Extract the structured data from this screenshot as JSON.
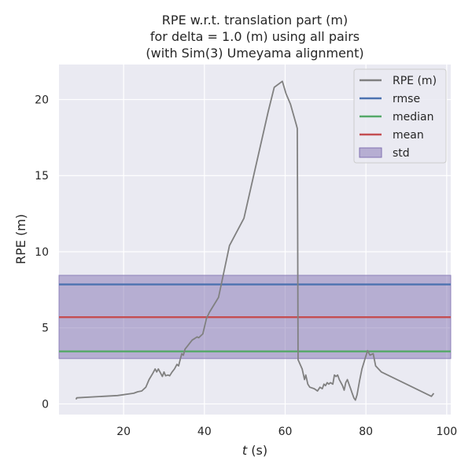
{
  "chart_data": {
    "type": "line",
    "title": [
      "RPE w.r.t. translation part (m)",
      "for delta = 1.0 (m) using all pairs",
      "(with Sim(3) Umeyama alignment)"
    ],
    "xlabel_italic": "t",
    "xlabel_rest": " (s)",
    "ylabel": "RPE (m)",
    "xlim": [
      4,
      101
    ],
    "ylim": [
      -0.7,
      22.3
    ],
    "xticks": [
      20,
      40,
      60,
      80,
      100
    ],
    "yticks": [
      0,
      5,
      10,
      15,
      20
    ],
    "grid": true,
    "legend_position": "top-right",
    "background": "#eaeaf2",
    "series": [
      {
        "name": "RPE (m)",
        "color": "#808080",
        "points": [
          [
            8.2,
            0.3
          ],
          [
            8.4,
            0.4
          ],
          [
            18.5,
            0.55
          ],
          [
            22.5,
            0.7
          ],
          [
            23.5,
            0.8
          ],
          [
            24.5,
            0.85
          ],
          [
            25.5,
            1.1
          ],
          [
            26.3,
            1.6
          ],
          [
            27.2,
            2.0
          ],
          [
            27.8,
            2.3
          ],
          [
            28.2,
            2.1
          ],
          [
            28.6,
            2.3
          ],
          [
            29.2,
            2.0
          ],
          [
            29.6,
            1.8
          ],
          [
            30.0,
            2.1
          ],
          [
            30.4,
            1.85
          ],
          [
            31.0,
            1.9
          ],
          [
            31.4,
            1.85
          ],
          [
            32.0,
            2.1
          ],
          [
            32.6,
            2.3
          ],
          [
            33.2,
            2.6
          ],
          [
            33.6,
            2.5
          ],
          [
            34.0,
            2.9
          ],
          [
            34.4,
            3.3
          ],
          [
            34.8,
            3.2
          ],
          [
            35.2,
            3.6
          ],
          [
            35.8,
            3.8
          ],
          [
            36.4,
            4.0
          ],
          [
            37.0,
            4.2
          ],
          [
            37.6,
            4.3
          ],
          [
            38.2,
            4.4
          ],
          [
            38.6,
            4.35
          ],
          [
            39.2,
            4.5
          ],
          [
            39.6,
            4.6
          ],
          [
            40.5,
            5.6
          ],
          [
            41.2,
            6.0
          ],
          [
            43.5,
            7.0
          ],
          [
            46.2,
            10.4
          ],
          [
            49.8,
            12.2
          ],
          [
            55.8,
            19.2
          ],
          [
            57.3,
            20.8
          ],
          [
            59.3,
            21.2
          ],
          [
            60.2,
            20.4
          ],
          [
            61.3,
            19.7
          ],
          [
            62.8,
            18.3
          ],
          [
            63.0,
            18.1
          ],
          [
            63.1,
            11.1
          ],
          [
            63.2,
            2.9
          ],
          [
            64.2,
            2.3
          ],
          [
            64.8,
            1.6
          ],
          [
            65.1,
            1.9
          ],
          [
            65.6,
            1.3
          ],
          [
            66.1,
            1.1
          ],
          [
            67.2,
            1.0
          ],
          [
            68.0,
            0.85
          ],
          [
            68.6,
            1.1
          ],
          [
            69.2,
            1.0
          ],
          [
            69.6,
            1.3
          ],
          [
            70.0,
            1.2
          ],
          [
            70.4,
            1.4
          ],
          [
            70.8,
            1.3
          ],
          [
            71.2,
            1.4
          ],
          [
            71.8,
            1.3
          ],
          [
            72.2,
            1.9
          ],
          [
            72.6,
            1.8
          ],
          [
            73.0,
            1.9
          ],
          [
            73.4,
            1.6
          ],
          [
            73.8,
            1.4
          ],
          [
            74.2,
            1.2
          ],
          [
            74.6,
            0.9
          ],
          [
            75.0,
            1.4
          ],
          [
            75.4,
            1.6
          ],
          [
            75.8,
            1.3
          ],
          [
            76.2,
            1.0
          ],
          [
            76.6,
            0.7
          ],
          [
            77.0,
            0.4
          ],
          [
            77.4,
            0.25
          ],
          [
            77.8,
            0.6
          ],
          [
            78.4,
            1.5
          ],
          [
            79.0,
            2.3
          ],
          [
            80.4,
            3.5
          ],
          [
            81.0,
            3.2
          ],
          [
            81.8,
            3.3
          ],
          [
            82.4,
            2.5
          ],
          [
            83.8,
            2.1
          ],
          [
            96.2,
            0.5
          ],
          [
            96.8,
            0.7
          ]
        ]
      }
    ],
    "stats": [
      {
        "name": "rmse",
        "value": 7.85,
        "color": "#4c72b0"
      },
      {
        "name": "median",
        "value": 3.45,
        "color": "#55a868"
      },
      {
        "name": "mean",
        "value": 5.7,
        "color": "#c44e52"
      }
    ],
    "std_band": {
      "name": "std",
      "low": 2.98,
      "high": 8.45,
      "color": "#8172b2"
    }
  }
}
